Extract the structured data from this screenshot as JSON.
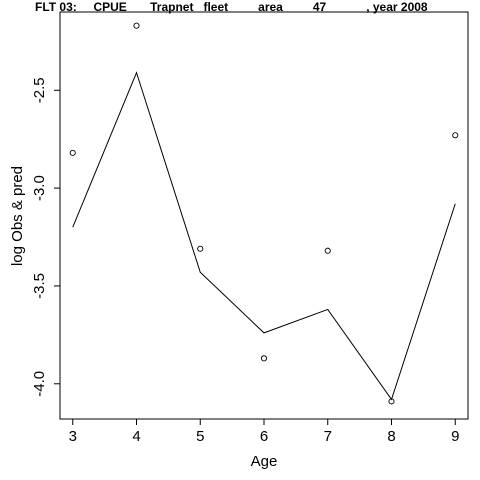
{
  "chart_data": {
    "type": "scatter",
    "title": "FLT 03:     CPUE       Trapnet   fleet         area         47            , year 2008",
    "xlabel": "Age",
    "ylabel": "log Obs & pred",
    "x_ticks": [
      3,
      4,
      5,
      6,
      7,
      8,
      9
    ],
    "y_ticks": [
      -2.5,
      -3.0,
      -3.5,
      -4.0
    ],
    "y_tick_labels": [
      "-2.5",
      "-3.0",
      "-3.5",
      "-4.0"
    ],
    "xlim": [
      2.8,
      9.2
    ],
    "ylim": [
      -4.18,
      -2.1
    ],
    "series": [
      {
        "kind": "points",
        "marker": "open-circle",
        "x": [
          3,
          4,
          5,
          6,
          7,
          8,
          9
        ],
        "y": [
          -2.82,
          -2.17,
          -3.31,
          -3.87,
          -3.32,
          -4.09,
          -2.73
        ]
      },
      {
        "kind": "line",
        "x": [
          3,
          4,
          5,
          6,
          7,
          8,
          9
        ],
        "y": [
          -3.2,
          -2.41,
          -3.43,
          -3.74,
          -3.62,
          -4.08,
          -3.08
        ]
      }
    ],
    "grid": false,
    "legend": "none"
  }
}
